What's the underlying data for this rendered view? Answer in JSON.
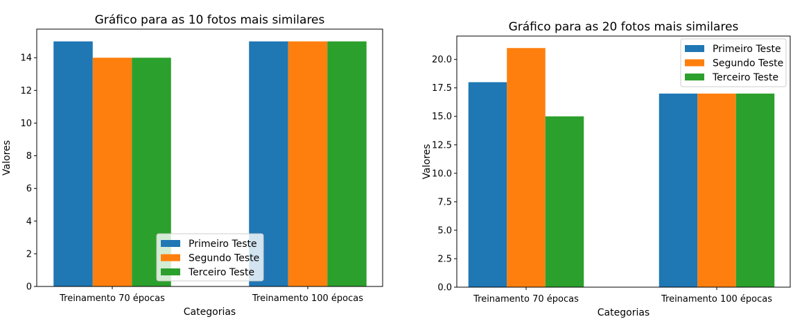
{
  "colors": {
    "series": [
      "#1f77b4",
      "#ff7f0e",
      "#2ca02c"
    ],
    "axis": "#000000",
    "legend_border": "#cccccc"
  },
  "chart_data": [
    {
      "type": "bar",
      "title": "Gráfico para as 10 fotos mais similares",
      "xlabel": "Categorias",
      "ylabel": "Valores",
      "categories": [
        "Treinamento 70 épocas",
        "Treinamento 100 épocas"
      ],
      "series": [
        {
          "name": "Primeiro Teste",
          "values": [
            15,
            15
          ]
        },
        {
          "name": "Segundo Teste",
          "values": [
            14,
            15
          ]
        },
        {
          "name": "Terceiro Teste",
          "values": [
            14,
            15
          ]
        }
      ],
      "ylim": [
        0,
        15.75
      ],
      "yticks": [
        0,
        2,
        4,
        6,
        8,
        10,
        12,
        14
      ],
      "ytick_labels": [
        "0",
        "2",
        "4",
        "6",
        "8",
        "10",
        "12",
        "14"
      ],
      "legend_position": "lower center",
      "grid": false
    },
    {
      "type": "bar",
      "title": "Gráfico para as 20 fotos mais similares",
      "xlabel": "Categorias",
      "ylabel": "Valores",
      "categories": [
        "Treinamento 70 épocas",
        "Treinamento 100 épocas"
      ],
      "series": [
        {
          "name": "Primeiro Teste",
          "values": [
            18,
            17
          ]
        },
        {
          "name": "Segundo Teste",
          "values": [
            21,
            17
          ]
        },
        {
          "name": "Terceiro Teste",
          "values": [
            15,
            17
          ]
        }
      ],
      "ylim": [
        0,
        22.05
      ],
      "yticks": [
        0,
        2.5,
        5,
        7.5,
        10,
        12.5,
        15,
        17.5,
        20
      ],
      "ytick_labels": [
        "0.0",
        "2.5",
        "5.0",
        "7.5",
        "10.0",
        "12.5",
        "15.0",
        "17.5",
        "20.0"
      ],
      "legend_position": "upper right",
      "grid": false
    }
  ]
}
